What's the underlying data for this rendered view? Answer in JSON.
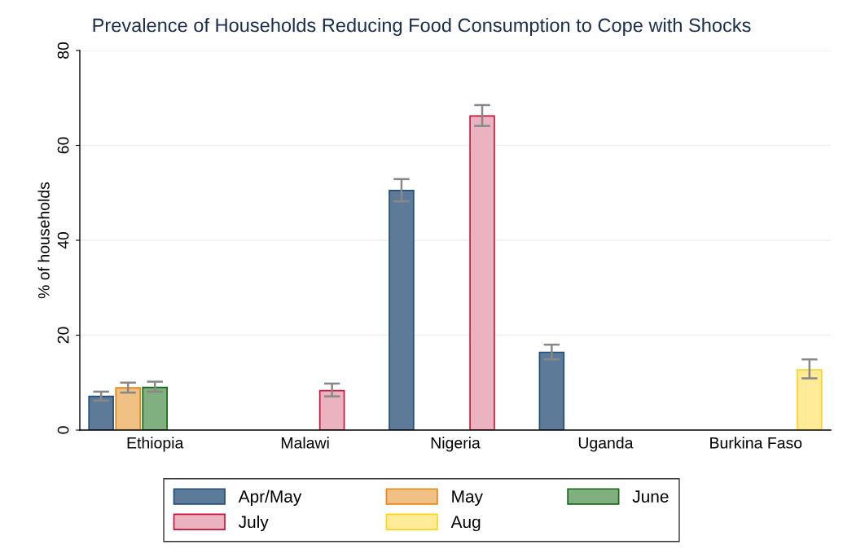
{
  "chart_data": {
    "type": "bar",
    "title": "Prevalence of Households Reducing Food Consumption to Cope with Shocks",
    "ylabel": "% of households",
    "categories": [
      "Ethiopia",
      "Malawi",
      "Nigeria",
      "Uganda",
      "Burkina Faso"
    ],
    "series": [
      {
        "name": "Apr/May",
        "color": "#5d7b99",
        "values": [
          7.1,
          null,
          50.5,
          16.4,
          null
        ],
        "errors": [
          [
            6.2,
            8.1
          ],
          null,
          [
            48.2,
            52.9
          ],
          [
            14.9,
            18.0
          ],
          null
        ]
      },
      {
        "name": "May",
        "color": "#f0c084",
        "values": [
          8.9,
          null,
          null,
          null,
          null
        ],
        "errors": [
          [
            7.9,
            10.0
          ],
          null,
          null,
          null,
          null
        ]
      },
      {
        "name": "June",
        "color": "#80b080",
        "values": [
          9.0,
          null,
          null,
          null,
          null
        ],
        "errors": [
          [
            8.1,
            10.2
          ],
          null,
          null,
          null,
          null
        ]
      },
      {
        "name": "July",
        "color": "#ebb2c0",
        "values": [
          null,
          8.3,
          66.2,
          null,
          null
        ],
        "errors": [
          null,
          [
            7.1,
            9.8
          ],
          [
            64.1,
            68.5
          ],
          null,
          null
        ]
      },
      {
        "name": "Aug",
        "color": "#ffeb98",
        "values": [
          null,
          null,
          null,
          null,
          12.7
        ],
        "errors": [
          null,
          null,
          null,
          null,
          [
            10.9,
            14.9
          ]
        ]
      }
    ],
    "ylim": [
      0,
      80
    ],
    "yticks": [
      0,
      20,
      40,
      60,
      80
    ],
    "grid": "y",
    "legend": "bottom"
  }
}
